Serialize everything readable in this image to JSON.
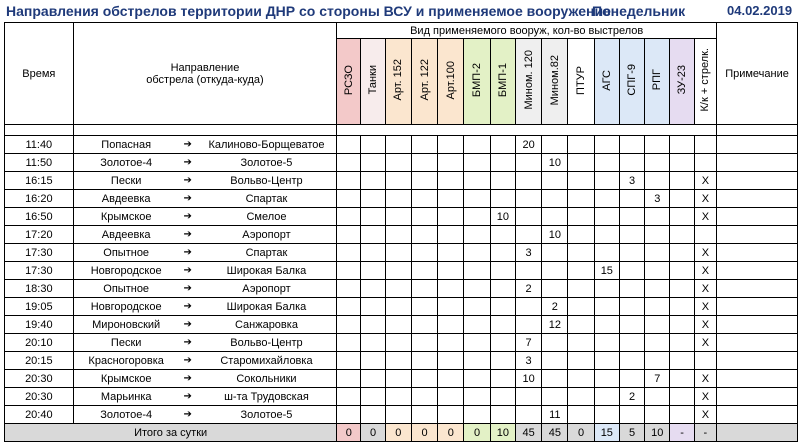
{
  "title": "Направления обстрелов территории ДНР со стороны ВСУ и применяемое вооружение",
  "day": "Понедельник",
  "date": "04.02.2019",
  "headers": {
    "time": "Время",
    "direction_line1": "Направление",
    "direction_line2": "обстрела  (откуда-куда)",
    "weapons_group": "Вид применяемого вооруж, кол-во выстрелов",
    "note": "Примечание",
    "weapons": [
      "РСЗО",
      "Танки",
      "Арт. 152",
      "Арт. 122",
      "Арт.100",
      "БМП-2",
      "БМП-1",
      "Мином. 120",
      "Мином.82",
      "ПТУР",
      "АГС",
      "СПГ-9",
      "РПГ",
      "ЗУ-23",
      "К/к + стрелк."
    ]
  },
  "arrow_glyph": "➔",
  "rows": [
    {
      "time": "11:40",
      "from": "Попасная",
      "to": "Калиново-Борщеватое",
      "v": [
        "",
        "",
        "",
        "",
        "",
        "",
        "",
        "20",
        "",
        "",
        "",
        "",
        "",
        "",
        ""
      ]
    },
    {
      "time": "11:50",
      "from": "Золотое-4",
      "to": "Золотое-5",
      "v": [
        "",
        "",
        "",
        "",
        "",
        "",
        "",
        "",
        "10",
        "",
        "",
        "",
        "",
        "",
        ""
      ]
    },
    {
      "time": "16:15",
      "from": "Пески",
      "to": "Вольво-Центр",
      "v": [
        "",
        "",
        "",
        "",
        "",
        "",
        "",
        "",
        "",
        "",
        "",
        "3",
        "",
        "",
        "Х"
      ]
    },
    {
      "time": "16:20",
      "from": "Авдеевка",
      "to": "Спартак",
      "v": [
        "",
        "",
        "",
        "",
        "",
        "",
        "",
        "",
        "",
        "",
        "",
        "",
        "3",
        "",
        "Х"
      ]
    },
    {
      "time": "16:50",
      "from": "Крымское",
      "to": "Смелое",
      "v": [
        "",
        "",
        "",
        "",
        "",
        "",
        "10",
        "",
        "",
        "",
        "",
        "",
        "",
        "",
        "Х"
      ]
    },
    {
      "time": "17:20",
      "from": "Авдеевка",
      "to": "Аэропорт",
      "v": [
        "",
        "",
        "",
        "",
        "",
        "",
        "",
        "",
        "10",
        "",
        "",
        "",
        "",
        "",
        ""
      ]
    },
    {
      "time": "17:30",
      "from": "Опытное",
      "to": "Спартак",
      "v": [
        "",
        "",
        "",
        "",
        "",
        "",
        "",
        "3",
        "",
        "",
        "",
        "",
        "",
        "",
        "Х"
      ]
    },
    {
      "time": "17:30",
      "from": "Новгородское",
      "to": "Широкая Балка",
      "v": [
        "",
        "",
        "",
        "",
        "",
        "",
        "",
        "",
        "",
        "",
        "15",
        "",
        "",
        "",
        "Х"
      ]
    },
    {
      "time": "18:30",
      "from": "Опытное",
      "to": "Аэропорт",
      "v": [
        "",
        "",
        "",
        "",
        "",
        "",
        "",
        "2",
        "",
        "",
        "",
        "",
        "",
        "",
        "Х"
      ]
    },
    {
      "time": "19:05",
      "from": "Новгородское",
      "to": "Широкая Балка",
      "v": [
        "",
        "",
        "",
        "",
        "",
        "",
        "",
        "",
        "2",
        "",
        "",
        "",
        "",
        "",
        "Х"
      ]
    },
    {
      "time": "19:40",
      "from": "Мироновский",
      "to": "Санжаровка",
      "v": [
        "",
        "",
        "",
        "",
        "",
        "",
        "",
        "",
        "12",
        "",
        "",
        "",
        "",
        "",
        "Х"
      ]
    },
    {
      "time": "20:10",
      "from": "Пески",
      "to": "Вольво-Центр",
      "v": [
        "",
        "",
        "",
        "",
        "",
        "",
        "",
        "7",
        "",
        "",
        "",
        "",
        "",
        "",
        "Х"
      ]
    },
    {
      "time": "20:15",
      "from": "Красногоровка",
      "to": "Старомихайловка",
      "v": [
        "",
        "",
        "",
        "",
        "",
        "",
        "",
        "3",
        "",
        "",
        "",
        "",
        "",
        "",
        ""
      ]
    },
    {
      "time": "20:30",
      "from": "Крымское",
      "to": "Сокольники",
      "v": [
        "",
        "",
        "",
        "",
        "",
        "",
        "",
        "10",
        "",
        "",
        "",
        "",
        "7",
        "",
        "Х"
      ]
    },
    {
      "time": "20:30",
      "from": "Марьинка",
      "to": "ш-та Трудовская",
      "v": [
        "",
        "",
        "",
        "",
        "",
        "",
        "",
        "",
        "",
        "",
        "",
        "2",
        "",
        "",
        "Х"
      ]
    },
    {
      "time": "20:40",
      "from": "Золотое-4",
      "to": "Золотое-5",
      "v": [
        "",
        "",
        "",
        "",
        "",
        "",
        "",
        "",
        "11",
        "",
        "",
        "",
        "",
        "",
        "Х"
      ]
    }
  ],
  "total": {
    "label": "Итого за сутки",
    "v": [
      "0",
      "0",
      "0",
      "0",
      "0",
      "0",
      "10",
      "45",
      "45",
      "0",
      "15",
      "5",
      "10",
      "-",
      "-"
    ]
  }
}
